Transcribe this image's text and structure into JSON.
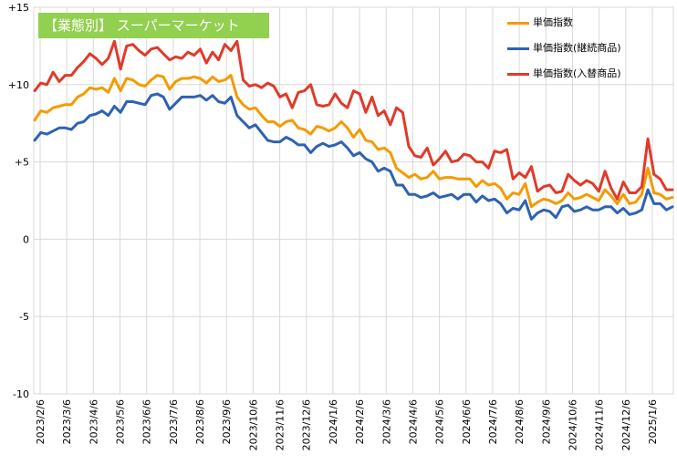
{
  "chart_data": {
    "type": "line",
    "title": "【業態別】 スーパーマーケット",
    "ylim": [
      -10,
      15
    ],
    "y_ticks": [
      "+15",
      "+10",
      "+5",
      "0",
      "-5",
      "-10"
    ],
    "y_tick_values": [
      15,
      10,
      5,
      0,
      -5,
      -10
    ],
    "x_labels": [
      "2023/2/6",
      "2023/3/6",
      "2023/4/6",
      "2023/5/6",
      "2023/6/6",
      "2023/7/6",
      "2023/8/6",
      "2023/9/6",
      "2023/10/6",
      "2023/11/6",
      "2023/12/6",
      "2024/1/6",
      "2024/2/6",
      "2024/3/6",
      "2024/4/6",
      "2024/5/6",
      "2024/6/6",
      "2024/7/6",
      "2024/8/6",
      "2024/9/6",
      "2024/10/6",
      "2024/11/6",
      "2024/12/6",
      "2025/1/6"
    ],
    "grid": true,
    "legend_position": "top-right",
    "series": [
      {
        "name": "単価指数",
        "color": "#f59a00",
        "values": [
          7.7,
          8.3,
          8.2,
          8.5,
          8.6,
          8.7,
          8.7,
          9.2,
          9.4,
          9.8,
          9.7,
          9.8,
          9.5,
          10.4,
          9.6,
          10.4,
          10.3,
          10.0,
          9.9,
          10.3,
          10.6,
          10.5,
          9.7,
          10.2,
          10.4,
          10.4,
          10.5,
          10.4,
          10.1,
          10.5,
          10.2,
          10.3,
          10.6,
          9.2,
          8.7,
          8.4,
          8.5,
          8.0,
          7.6,
          7.6,
          7.3,
          7.6,
          7.7,
          7.2,
          7.1,
          6.8,
          7.3,
          7.2,
          7.0,
          7.2,
          7.6,
          7.2,
          6.6,
          7.1,
          6.4,
          6.3,
          5.8,
          5.9,
          5.6,
          4.6,
          4.3,
          4.0,
          4.2,
          3.9,
          4.0,
          4.4,
          3.9,
          4.0,
          4.0,
          3.9,
          3.9,
          3.9,
          3.4,
          3.8,
          3.5,
          3.6,
          3.3,
          2.6,
          3.0,
          2.9,
          3.6,
          2.1,
          2.4,
          2.6,
          2.5,
          2.3,
          2.5,
          3.0,
          2.6,
          2.7,
          2.9,
          2.7,
          2.5,
          3.2,
          2.8,
          2.3,
          2.9,
          2.3,
          2.4,
          2.9,
          4.6,
          3.0,
          2.9,
          2.6,
          2.7
        ]
      },
      {
        "name": "単価指数(継続商品)",
        "color": "#2e62b3",
        "values": [
          6.4,
          6.9,
          6.8,
          7.0,
          7.2,
          7.2,
          7.1,
          7.5,
          7.6,
          8.0,
          8.1,
          8.3,
          8.0,
          8.6,
          8.2,
          8.9,
          8.9,
          8.8,
          8.7,
          9.3,
          9.4,
          9.2,
          8.4,
          8.8,
          9.2,
          9.2,
          9.2,
          9.3,
          9.0,
          9.3,
          8.9,
          8.8,
          9.2,
          8.0,
          7.6,
          7.2,
          7.4,
          6.9,
          6.4,
          6.3,
          6.3,
          6.6,
          6.4,
          6.1,
          6.1,
          5.6,
          6.0,
          6.2,
          6.0,
          6.1,
          6.3,
          5.9,
          5.4,
          5.6,
          5.2,
          5.0,
          4.4,
          4.6,
          4.4,
          3.5,
          3.5,
          2.9,
          2.9,
          2.7,
          2.8,
          3.0,
          2.7,
          2.8,
          2.9,
          2.6,
          2.9,
          2.9,
          2.4,
          2.8,
          2.5,
          2.6,
          2.3,
          1.7,
          2.0,
          1.9,
          2.5,
          1.3,
          1.7,
          1.9,
          1.8,
          1.4,
          2.1,
          2.2,
          1.8,
          1.9,
          2.1,
          1.9,
          1.9,
          2.1,
          2.1,
          1.7,
          2.0,
          1.6,
          1.7,
          1.9,
          3.2,
          2.3,
          2.3,
          1.9,
          2.1
        ]
      },
      {
        "name": "単価指数(入替商品)",
        "color": "#e03a2a",
        "values": [
          9.6,
          10.1,
          10.0,
          10.8,
          10.2,
          10.6,
          10.6,
          11.1,
          11.5,
          12.0,
          11.7,
          11.3,
          11.7,
          12.8,
          11.0,
          12.5,
          12.6,
          12.2,
          11.9,
          12.3,
          12.4,
          12.0,
          11.6,
          11.8,
          11.7,
          12.1,
          11.9,
          12.3,
          11.4,
          12.1,
          11.6,
          12.6,
          12.2,
          12.8,
          10.3,
          9.9,
          10.0,
          9.8,
          10.1,
          9.9,
          9.2,
          9.4,
          8.5,
          9.5,
          9.6,
          10.0,
          8.7,
          8.6,
          8.7,
          9.4,
          8.8,
          8.5,
          9.6,
          9.4,
          8.2,
          9.2,
          8.0,
          8.3,
          7.4,
          8.5,
          8.2,
          6.0,
          5.4,
          5.3,
          5.9,
          4.8,
          5.2,
          5.7,
          5.0,
          5.1,
          5.5,
          5.4,
          5.0,
          5.0,
          4.6,
          5.7,
          5.6,
          5.8,
          3.9,
          4.3,
          4.0,
          4.7,
          3.1,
          3.4,
          3.5,
          3.0,
          3.1,
          4.2,
          3.8,
          3.5,
          3.8,
          3.6,
          3.1,
          4.4,
          3.3,
          2.6,
          3.7,
          3.0,
          3.0,
          3.4,
          6.5,
          4.2,
          3.9,
          3.2,
          3.2
        ]
      }
    ]
  }
}
